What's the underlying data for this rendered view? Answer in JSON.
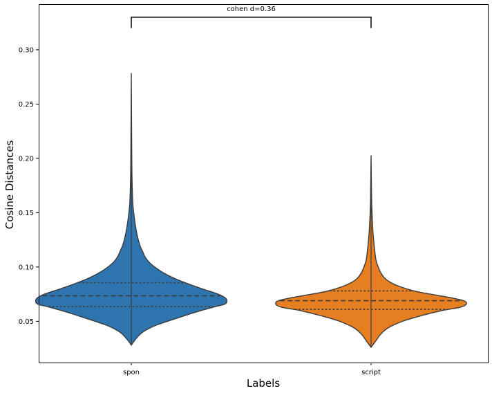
{
  "chart_data": {
    "type": "violin",
    "xlabel": "Labels",
    "ylabel": "Cosine Distances",
    "ylim": [
      0.012,
      0.342
    ],
    "yticks": [
      0.05,
      0.1,
      0.15,
      0.2,
      0.25,
      0.3
    ],
    "ytick_labels": [
      "0.05",
      "0.10",
      "0.15",
      "0.20",
      "0.25",
      "0.30"
    ],
    "categories": [
      "spon",
      "script"
    ],
    "violins": [
      {
        "category": "spon",
        "color": "#2e75b0",
        "min": 0.028,
        "max": 0.273,
        "q1": 0.0635,
        "median": 0.0735,
        "q3": 0.0855,
        "density": [
          [
            0.028,
            0.0
          ],
          [
            0.034,
            0.05
          ],
          [
            0.04,
            0.12
          ],
          [
            0.046,
            0.25
          ],
          [
            0.052,
            0.45
          ],
          [
            0.058,
            0.66
          ],
          [
            0.063,
            0.86
          ],
          [
            0.066,
            0.985
          ],
          [
            0.07,
            1.0
          ],
          [
            0.073,
            0.96
          ],
          [
            0.076,
            0.88
          ],
          [
            0.08,
            0.74
          ],
          [
            0.085,
            0.58
          ],
          [
            0.09,
            0.44
          ],
          [
            0.095,
            0.33
          ],
          [
            0.1,
            0.245
          ],
          [
            0.105,
            0.18
          ],
          [
            0.11,
            0.14
          ],
          [
            0.115,
            0.115
          ],
          [
            0.12,
            0.09
          ],
          [
            0.13,
            0.06
          ],
          [
            0.14,
            0.04
          ],
          [
            0.15,
            0.025
          ],
          [
            0.16,
            0.015
          ],
          [
            0.18,
            0.008
          ],
          [
            0.2,
            0.005
          ],
          [
            0.23,
            0.003
          ],
          [
            0.273,
            0.0
          ]
        ]
      },
      {
        "category": "script",
        "color": "#e67e22",
        "min": 0.026,
        "max": 0.2,
        "q1": 0.061,
        "median": 0.069,
        "q3": 0.078,
        "density": [
          [
            0.026,
            0.0
          ],
          [
            0.032,
            0.05
          ],
          [
            0.038,
            0.1
          ],
          [
            0.044,
            0.18
          ],
          [
            0.05,
            0.33
          ],
          [
            0.055,
            0.52
          ],
          [
            0.06,
            0.75
          ],
          [
            0.063,
            0.94
          ],
          [
            0.066,
            1.0
          ],
          [
            0.069,
            0.97
          ],
          [
            0.072,
            0.82
          ],
          [
            0.075,
            0.62
          ],
          [
            0.078,
            0.45
          ],
          [
            0.082,
            0.3
          ],
          [
            0.086,
            0.2
          ],
          [
            0.09,
            0.14
          ],
          [
            0.095,
            0.1
          ],
          [
            0.1,
            0.075
          ],
          [
            0.105,
            0.055
          ],
          [
            0.11,
            0.045
          ],
          [
            0.12,
            0.032
          ],
          [
            0.13,
            0.022
          ],
          [
            0.14,
            0.015
          ],
          [
            0.15,
            0.01
          ],
          [
            0.16,
            0.006
          ],
          [
            0.18,
            0.003
          ],
          [
            0.2,
            0.0
          ]
        ]
      }
    ],
    "annotation": {
      "text": "cohen d=0.36",
      "bracket_y": 0.33,
      "bracket_drop_to": 0.32
    },
    "grid": false,
    "legend": "none"
  }
}
